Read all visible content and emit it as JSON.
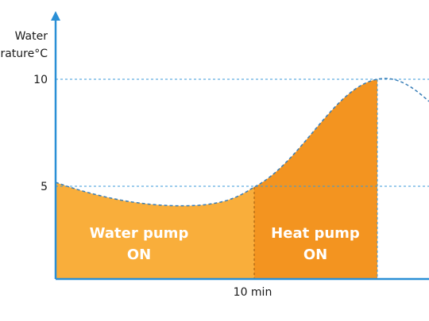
{
  "axis": {
    "y_label": [
      "Water",
      "temperature°C"
    ],
    "y_ticks": [
      "10",
      "5"
    ],
    "x_label": "10 min"
  },
  "regions": [
    {
      "label": [
        "Water pump",
        "ON"
      ]
    },
    {
      "label": [
        "Heat pump",
        "ON"
      ]
    }
  ]
}
